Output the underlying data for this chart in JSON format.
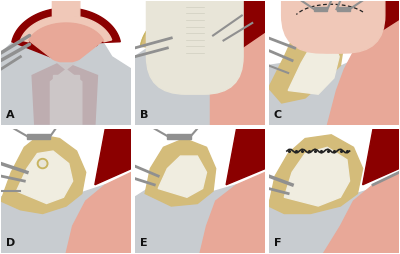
{
  "panels": [
    "A",
    "B",
    "C",
    "D",
    "E",
    "F"
  ],
  "grid_rows": 2,
  "grid_cols": 3,
  "figsize": [
    4.0,
    2.54
  ],
  "dpi": 100,
  "bg_color": "#ffffff",
  "label_fontsize": 8,
  "label_color": "#111111",
  "label_fontweight": "bold",
  "colors": {
    "bg_pink": "#f0c8b8",
    "bg_light": "#f5e0d8",
    "dark_red": "#8b0000",
    "aorta_red": "#c0302a",
    "aorta_bright": "#e05040",
    "aorta_pink": "#e8a898",
    "aorta_light_pink": "#f0c8b8",
    "heart_pink": "#d9897a",
    "gray_tissue": "#a8b0b8",
    "gray_light": "#c8ccd0",
    "gray_dark": "#8090a0",
    "graft_gold": "#c8b460",
    "graft_gold2": "#d4c070",
    "graft_tan": "#d4bc7a",
    "graft_cream": "#e8dca0",
    "white_graft": "#f0ede0",
    "off_white": "#e8e5d8",
    "suture_dark": "#222222",
    "clamp_gray": "#909090",
    "vessel_pink": "#d4807a",
    "vessel_branch": "#c87070"
  }
}
